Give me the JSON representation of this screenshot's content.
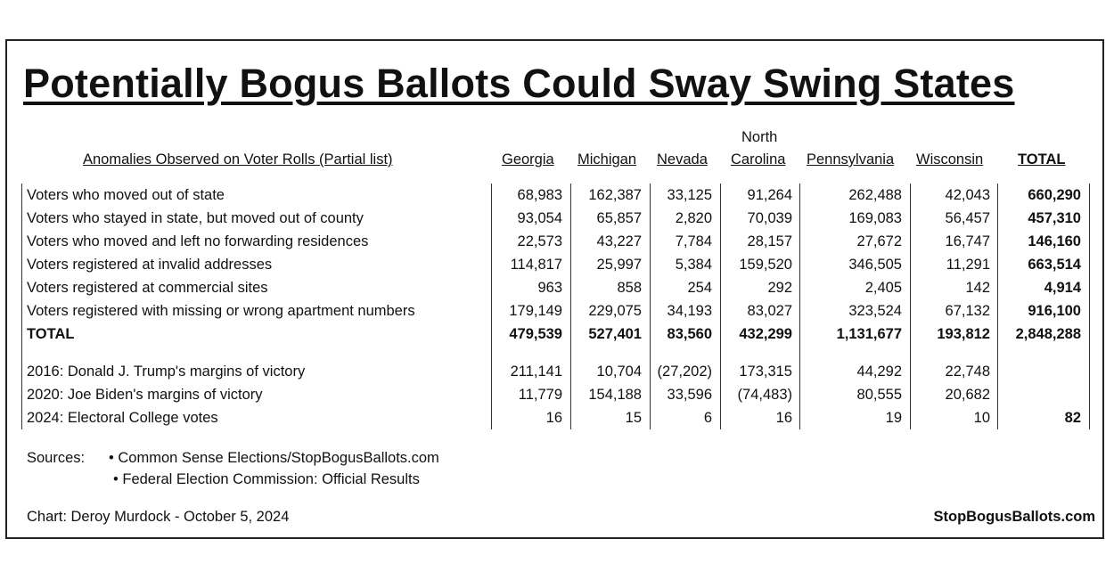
{
  "title": "Potentially Bogus Ballots Could Sway Swing States",
  "header": {
    "row_label": "Anomalies Observed on Voter Rolls (Partial list)",
    "columns": [
      "Georgia",
      "Michigan",
      "Nevada",
      "North Carolina",
      "Pennsylvania",
      "Wisconsin",
      "TOTAL"
    ],
    "nc_line1": "North",
    "nc_line2": "Carolina"
  },
  "rows": [
    {
      "label": "Voters who moved out of state",
      "values": [
        "68,983",
        "162,387",
        "33,125",
        "91,264",
        "262,488",
        "42,043",
        "660,290"
      ]
    },
    {
      "label": "Voters who stayed in state, but moved out of county",
      "values": [
        "93,054",
        "65,857",
        "2,820",
        "70,039",
        "169,083",
        "56,457",
        "457,310"
      ]
    },
    {
      "label": "Voters who moved and left no forwarding residences",
      "values": [
        "22,573",
        "43,227",
        "7,784",
        "28,157",
        "27,672",
        "16,747",
        "146,160"
      ]
    },
    {
      "label": "Voters registered at invalid addresses",
      "values": [
        "114,817",
        "25,997",
        "5,384",
        "159,520",
        "346,505",
        "11,291",
        "663,514"
      ]
    },
    {
      "label": "Voters registered at commercial sites",
      "values": [
        "963",
        "858",
        "254",
        "292",
        "2,405",
        "142",
        "4,914"
      ]
    },
    {
      "label": "Voters registered with missing or wrong apartment numbers",
      "values": [
        "179,149",
        "229,075",
        "34,193",
        "83,027",
        "323,524",
        "67,132",
        "916,100"
      ]
    },
    {
      "label": "TOTAL",
      "values": [
        "479,539",
        "527,401",
        "83,560",
        "432,299",
        "1,131,677",
        "193,812",
        "2,848,288"
      ]
    },
    {
      "label": "2016: Donald J. Trump's margins of victory",
      "values": [
        "211,141",
        "10,704",
        "(27,202)",
        "173,315",
        "44,292",
        "22,748",
        ""
      ]
    },
    {
      "label": "2020: Joe Biden's margins of victory",
      "values": [
        "11,779",
        "154,188",
        "33,596",
        "(74,483)",
        "80,555",
        "20,682",
        ""
      ]
    },
    {
      "label": "2024: Electoral College votes",
      "values": [
        "16",
        "15",
        "6",
        "16",
        "19",
        "10",
        "82"
      ]
    }
  ],
  "footer": {
    "sources_label": "Sources:",
    "source1": "• Common Sense Elections/StopBogusBallots.com",
    "source2": "• Federal Election Commission: Official Results",
    "credit": "Chart: Deroy Murdock - October 5, 2024",
    "site": "StopBogusBallots.com"
  },
  "chart_data": {
    "type": "table",
    "title": "Potentially Bogus Ballots Could Sway Swing States",
    "columns": [
      "Anomalies Observed on Voter Rolls (Partial list)",
      "Georgia",
      "Michigan",
      "Nevada",
      "North Carolina",
      "Pennsylvania",
      "Wisconsin",
      "TOTAL"
    ],
    "rows": [
      [
        "Voters who moved out of state",
        68983,
        162387,
        33125,
        91264,
        262488,
        42043,
        660290
      ],
      [
        "Voters who stayed in state, but moved out of county",
        93054,
        65857,
        2820,
        70039,
        169083,
        56457,
        457310
      ],
      [
        "Voters who moved and left no forwarding residences",
        22573,
        43227,
        7784,
        28157,
        27672,
        16747,
        146160
      ],
      [
        "Voters registered at invalid addresses",
        114817,
        25997,
        5384,
        159520,
        346505,
        11291,
        663514
      ],
      [
        "Voters registered at commercial sites",
        963,
        858,
        254,
        292,
        2405,
        142,
        4914
      ],
      [
        "Voters registered with missing or wrong apartment numbers",
        179149,
        229075,
        34193,
        83027,
        323524,
        67132,
        916100
      ],
      [
        "TOTAL",
        479539,
        527401,
        83560,
        432299,
        1131677,
        193812,
        2848288
      ],
      [
        "2016: Donald J. Trump's margins of victory",
        211141,
        10704,
        -27202,
        173315,
        44292,
        22748,
        null
      ],
      [
        "2020: Joe Biden's margins of victory",
        11779,
        154188,
        33596,
        -74483,
        80555,
        20682,
        null
      ],
      [
        "2024: Electoral College votes",
        16,
        15,
        6,
        16,
        19,
        10,
        82
      ]
    ],
    "sources": [
      "Common Sense Elections/StopBogusBallots.com",
      "Federal Election Commission: Official Results"
    ],
    "credit": "Chart: Deroy Murdock - October 5, 2024"
  }
}
